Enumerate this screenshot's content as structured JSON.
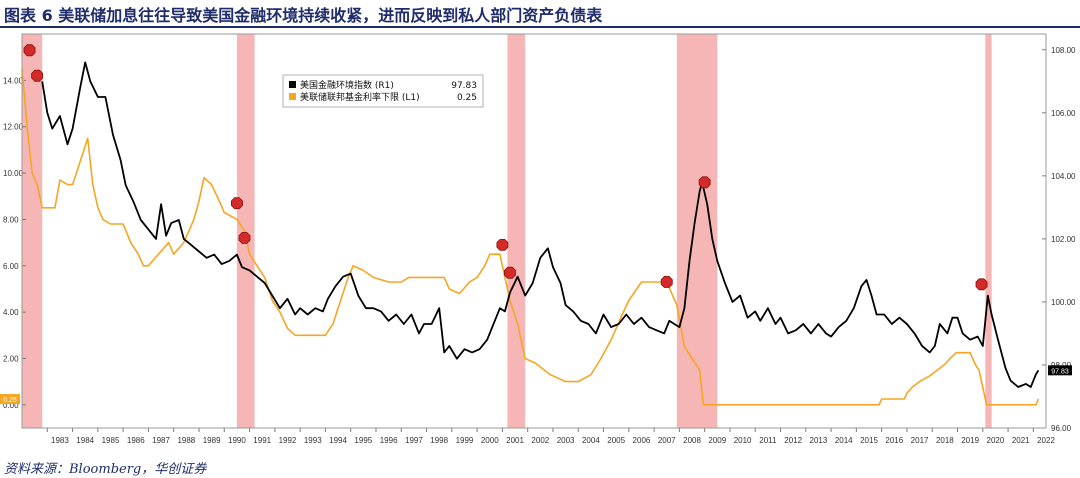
{
  "title": "图表 6  美联储加息往往导致美国金融环境持续收紧，进而反映到私人部门资产负债表",
  "source": "资料来源：Bloomberg，华创证券",
  "chart_data": {
    "type": "line",
    "x_axis": {
      "ticks": [
        "1983",
        "1984",
        "1985",
        "1986",
        "1987",
        "1988",
        "1989",
        "1990",
        "1991",
        "1992",
        "1993",
        "1994",
        "1995",
        "1996",
        "1997",
        "1998",
        "1999",
        "2000",
        "2001",
        "2002",
        "2003",
        "2004",
        "2005",
        "2006",
        "2007",
        "2008",
        "2009",
        "2010",
        "2011",
        "2012",
        "2013",
        "2014",
        "2015",
        "2016",
        "2017",
        "2018",
        "2019",
        "2020",
        "2021",
        "2022"
      ],
      "range": [
        1982.0,
        2022.5
      ]
    },
    "left_axis": {
      "ticks": [
        "0.00",
        "2.00",
        "4.00",
        "6.00",
        "8.00",
        "10.00",
        "12.00",
        "14.00"
      ],
      "range": [
        -1.0,
        16.0
      ]
    },
    "right_axis": {
      "ticks": [
        "96.00",
        "98.00",
        "100.00",
        "102.00",
        "104.00",
        "106.00",
        "108.00"
      ],
      "range": [
        96.0,
        108.5
      ]
    },
    "legend": {
      "placement": "top-center",
      "entries": [
        {
          "label": "美国金融环境指数 (R1)",
          "value": "97.83",
          "color": "#000000"
        },
        {
          "label": "美联储联邦基金利率下限 (L1)",
          "value": "0.25",
          "color": "#f5a623"
        }
      ]
    },
    "recession_bands": [
      {
        "start": 1982.0,
        "end": 1982.8
      },
      {
        "start": 1990.5,
        "end": 1991.2
      },
      {
        "start": 2001.2,
        "end": 2001.9
      },
      {
        "start": 2007.9,
        "end": 2009.5
      },
      {
        "start": 2020.1,
        "end": 2020.35
      }
    ],
    "series": [
      {
        "name": "美联储联邦基金利率下限 (L1)",
        "axis": "left",
        "color": "#f5a623",
        "points": [
          [
            1982.0,
            14.5
          ],
          [
            1982.2,
            12.0
          ],
          [
            1982.4,
            10.0
          ],
          [
            1982.6,
            9.5
          ],
          [
            1982.8,
            8.5
          ],
          [
            1983.0,
            8.5
          ],
          [
            1983.3,
            8.5
          ],
          [
            1983.5,
            9.7
          ],
          [
            1983.8,
            9.5
          ],
          [
            1984.0,
            9.5
          ],
          [
            1984.3,
            10.5
          ],
          [
            1984.6,
            11.5
          ],
          [
            1984.8,
            9.5
          ],
          [
            1985.0,
            8.5
          ],
          [
            1985.2,
            8.0
          ],
          [
            1985.5,
            7.8
          ],
          [
            1985.8,
            7.8
          ],
          [
            1986.0,
            7.8
          ],
          [
            1986.3,
            7.0
          ],
          [
            1986.6,
            6.5
          ],
          [
            1986.8,
            6.0
          ],
          [
            1987.0,
            6.0
          ],
          [
            1987.4,
            6.5
          ],
          [
            1987.8,
            7.0
          ],
          [
            1988.0,
            6.5
          ],
          [
            1988.4,
            7.0
          ],
          [
            1988.8,
            8.0
          ],
          [
            1989.0,
            8.8
          ],
          [
            1989.2,
            9.8
          ],
          [
            1989.5,
            9.5
          ],
          [
            1989.8,
            8.8
          ],
          [
            1990.0,
            8.3
          ],
          [
            1990.5,
            8.0
          ],
          [
            1990.8,
            7.5
          ],
          [
            1991.0,
            6.5
          ],
          [
            1991.3,
            6.0
          ],
          [
            1991.6,
            5.5
          ],
          [
            1991.9,
            4.5
          ],
          [
            1992.2,
            4.0
          ],
          [
            1992.5,
            3.3
          ],
          [
            1992.8,
            3.0
          ],
          [
            1993.0,
            3.0
          ],
          [
            1993.5,
            3.0
          ],
          [
            1994.0,
            3.0
          ],
          [
            1994.3,
            3.5
          ],
          [
            1994.6,
            4.5
          ],
          [
            1994.9,
            5.5
          ],
          [
            1995.1,
            6.0
          ],
          [
            1995.5,
            5.8
          ],
          [
            1995.9,
            5.5
          ],
          [
            1996.5,
            5.3
          ],
          [
            1997.0,
            5.3
          ],
          [
            1997.3,
            5.5
          ],
          [
            1998.0,
            5.5
          ],
          [
            1998.7,
            5.5
          ],
          [
            1998.9,
            5.0
          ],
          [
            1999.3,
            4.8
          ],
          [
            1999.7,
            5.3
          ],
          [
            2000.0,
            5.5
          ],
          [
            2000.3,
            6.0
          ],
          [
            2000.5,
            6.5
          ],
          [
            2000.9,
            6.5
          ],
          [
            2001.0,
            6.0
          ],
          [
            2001.3,
            4.5
          ],
          [
            2001.6,
            3.5
          ],
          [
            2001.9,
            2.0
          ],
          [
            2002.3,
            1.8
          ],
          [
            2002.9,
            1.3
          ],
          [
            2003.5,
            1.0
          ],
          [
            2004.0,
            1.0
          ],
          [
            2004.5,
            1.3
          ],
          [
            2004.9,
            2.0
          ],
          [
            2005.3,
            2.8
          ],
          [
            2005.7,
            3.8
          ],
          [
            2006.0,
            4.5
          ],
          [
            2006.5,
            5.3
          ],
          [
            2006.9,
            5.3
          ],
          [
            2007.5,
            5.3
          ],
          [
            2007.7,
            4.8
          ],
          [
            2007.9,
            4.3
          ],
          [
            2008.2,
            2.5
          ],
          [
            2008.5,
            2.0
          ],
          [
            2008.8,
            1.5
          ],
          [
            2008.95,
            0.0
          ],
          [
            2009.5,
            0.0
          ],
          [
            2010.0,
            0.0
          ],
          [
            2011.0,
            0.0
          ],
          [
            2012.0,
            0.0
          ],
          [
            2013.0,
            0.0
          ],
          [
            2014.0,
            0.0
          ],
          [
            2015.0,
            0.0
          ],
          [
            2015.9,
            0.0
          ],
          [
            2016.0,
            0.25
          ],
          [
            2016.9,
            0.25
          ],
          [
            2017.0,
            0.5
          ],
          [
            2017.2,
            0.75
          ],
          [
            2017.5,
            1.0
          ],
          [
            2017.9,
            1.25
          ],
          [
            2018.2,
            1.5
          ],
          [
            2018.5,
            1.75
          ],
          [
            2018.7,
            2.0
          ],
          [
            2018.95,
            2.25
          ],
          [
            2019.5,
            2.25
          ],
          [
            2019.6,
            2.0
          ],
          [
            2019.7,
            1.75
          ],
          [
            2019.85,
            1.5
          ],
          [
            2020.15,
            0.0
          ],
          [
            2021.0,
            0.0
          ],
          [
            2022.1,
            0.0
          ],
          [
            2022.2,
            0.25
          ]
        ]
      },
      {
        "name": "美国金融环境指数 (R1)",
        "axis": "right",
        "color": "#000000",
        "points": [
          [
            1982.8,
            107.0
          ],
          [
            1983.0,
            106.0
          ],
          [
            1983.2,
            105.5
          ],
          [
            1983.5,
            105.9
          ],
          [
            1983.8,
            105.0
          ],
          [
            1984.0,
            105.5
          ],
          [
            1984.3,
            106.8
          ],
          [
            1984.5,
            107.6
          ],
          [
            1984.7,
            107.0
          ],
          [
            1985.0,
            106.5
          ],
          [
            1985.3,
            106.5
          ],
          [
            1985.6,
            105.3
          ],
          [
            1985.9,
            104.5
          ],
          [
            1986.1,
            103.7
          ],
          [
            1986.4,
            103.2
          ],
          [
            1986.7,
            102.6
          ],
          [
            1986.9,
            102.4
          ],
          [
            1987.1,
            102.2
          ],
          [
            1987.3,
            102.0
          ],
          [
            1987.5,
            103.1
          ],
          [
            1987.7,
            102.1
          ],
          [
            1987.9,
            102.5
          ],
          [
            1988.2,
            102.6
          ],
          [
            1988.4,
            102.0
          ],
          [
            1988.7,
            101.8
          ],
          [
            1989.0,
            101.6
          ],
          [
            1989.3,
            101.4
          ],
          [
            1989.6,
            101.5
          ],
          [
            1989.9,
            101.2
          ],
          [
            1990.2,
            101.3
          ],
          [
            1990.5,
            101.5
          ],
          [
            1990.7,
            101.1
          ],
          [
            1991.0,
            101.0
          ],
          [
            1991.3,
            100.8
          ],
          [
            1991.6,
            100.6
          ],
          [
            1991.9,
            100.2
          ],
          [
            1992.2,
            99.8
          ],
          [
            1992.5,
            100.1
          ],
          [
            1992.8,
            99.6
          ],
          [
            1993.0,
            99.8
          ],
          [
            1993.3,
            99.6
          ],
          [
            1993.6,
            99.8
          ],
          [
            1993.9,
            99.7
          ],
          [
            1994.1,
            100.1
          ],
          [
            1994.4,
            100.5
          ],
          [
            1994.7,
            100.8
          ],
          [
            1995.0,
            100.9
          ],
          [
            1995.3,
            100.2
          ],
          [
            1995.6,
            99.8
          ],
          [
            1995.9,
            99.8
          ],
          [
            1996.2,
            99.7
          ],
          [
            1996.5,
            99.4
          ],
          [
            1996.8,
            99.6
          ],
          [
            1997.1,
            99.3
          ],
          [
            1997.4,
            99.6
          ],
          [
            1997.7,
            99.0
          ],
          [
            1997.9,
            99.3
          ],
          [
            1998.2,
            99.3
          ],
          [
            1998.5,
            99.8
          ],
          [
            1998.7,
            98.4
          ],
          [
            1998.9,
            98.6
          ],
          [
            1999.2,
            98.2
          ],
          [
            1999.5,
            98.5
          ],
          [
            1999.8,
            98.4
          ],
          [
            2000.1,
            98.5
          ],
          [
            2000.4,
            98.8
          ],
          [
            2000.7,
            99.4
          ],
          [
            2000.9,
            99.8
          ],
          [
            2001.1,
            99.7
          ],
          [
            2001.3,
            100.3
          ],
          [
            2001.6,
            100.8
          ],
          [
            2001.9,
            100.2
          ],
          [
            2002.2,
            100.6
          ],
          [
            2002.5,
            101.4
          ],
          [
            2002.8,
            101.7
          ],
          [
            2003.0,
            101.1
          ],
          [
            2003.3,
            100.6
          ],
          [
            2003.5,
            99.9
          ],
          [
            2003.8,
            99.7
          ],
          [
            2004.1,
            99.4
          ],
          [
            2004.4,
            99.3
          ],
          [
            2004.7,
            99.0
          ],
          [
            2005.0,
            99.6
          ],
          [
            2005.3,
            99.2
          ],
          [
            2005.6,
            99.3
          ],
          [
            2005.9,
            99.6
          ],
          [
            2006.2,
            99.3
          ],
          [
            2006.5,
            99.5
          ],
          [
            2006.8,
            99.2
          ],
          [
            2007.1,
            99.1
          ],
          [
            2007.4,
            99.0
          ],
          [
            2007.6,
            99.4
          ],
          [
            2007.8,
            99.3
          ],
          [
            2008.0,
            99.2
          ],
          [
            2008.2,
            99.8
          ],
          [
            2008.4,
            101.3
          ],
          [
            2008.6,
            102.5
          ],
          [
            2008.8,
            103.5
          ],
          [
            2008.9,
            103.8
          ],
          [
            2009.1,
            103.1
          ],
          [
            2009.3,
            102.0
          ],
          [
            2009.5,
            101.3
          ],
          [
            2009.8,
            100.6
          ],
          [
            2010.1,
            100.0
          ],
          [
            2010.4,
            100.2
          ],
          [
            2010.7,
            99.5
          ],
          [
            2011.0,
            99.7
          ],
          [
            2011.2,
            99.4
          ],
          [
            2011.5,
            99.8
          ],
          [
            2011.8,
            99.3
          ],
          [
            2012.0,
            99.5
          ],
          [
            2012.3,
            99.0
          ],
          [
            2012.6,
            99.1
          ],
          [
            2012.9,
            99.3
          ],
          [
            2013.2,
            99.0
          ],
          [
            2013.5,
            99.3
          ],
          [
            2013.8,
            99.0
          ],
          [
            2014.0,
            98.9
          ],
          [
            2014.3,
            99.2
          ],
          [
            2014.6,
            99.4
          ],
          [
            2014.9,
            99.8
          ],
          [
            2015.2,
            100.5
          ],
          [
            2015.4,
            100.7
          ],
          [
            2015.6,
            100.2
          ],
          [
            2015.8,
            99.6
          ],
          [
            2016.1,
            99.6
          ],
          [
            2016.4,
            99.3
          ],
          [
            2016.7,
            99.5
          ],
          [
            2017.0,
            99.3
          ],
          [
            2017.3,
            99.0
          ],
          [
            2017.6,
            98.6
          ],
          [
            2017.9,
            98.4
          ],
          [
            2018.1,
            98.6
          ],
          [
            2018.3,
            99.3
          ],
          [
            2018.6,
            99.0
          ],
          [
            2018.8,
            99.5
          ],
          [
            2019.0,
            99.5
          ],
          [
            2019.2,
            99.0
          ],
          [
            2019.5,
            98.8
          ],
          [
            2019.8,
            98.9
          ],
          [
            2020.0,
            98.6
          ],
          [
            2020.2,
            100.2
          ],
          [
            2020.35,
            99.6
          ],
          [
            2020.6,
            98.8
          ],
          [
            2020.9,
            97.9
          ],
          [
            2021.1,
            97.5
          ],
          [
            2021.4,
            97.3
          ],
          [
            2021.7,
            97.4
          ],
          [
            2021.9,
            97.3
          ],
          [
            2022.1,
            97.7
          ],
          [
            2022.2,
            97.83
          ]
        ]
      }
    ],
    "hike_markers": [
      {
        "x": 1982.3,
        "y": 15.3,
        "axis": "left"
      },
      {
        "x": 1982.6,
        "y": 14.2,
        "axis": "left"
      },
      {
        "x": 1990.5,
        "y": 8.7,
        "axis": "left"
      },
      {
        "x": 1990.8,
        "y": 7.2,
        "axis": "left"
      },
      {
        "x": 2001.0,
        "y": 6.9,
        "axis": "left"
      },
      {
        "x": 2001.3,
        "y": 5.7,
        "axis": "left"
      },
      {
        "x": 2007.5,
        "y": 5.3,
        "axis": "left"
      },
      {
        "x": 2009.0,
        "y": 9.6,
        "axis": "left"
      },
      {
        "x": 2019.95,
        "y": 5.2,
        "axis": "left"
      }
    ],
    "last_value_labels": [
      {
        "text": "0.25",
        "axis": "left",
        "value": 0.25,
        "side": "left",
        "color": "#f5a623"
      },
      {
        "text": "97.83",
        "axis": "right",
        "value": 97.83,
        "side": "right",
        "color": "#000000"
      }
    ]
  }
}
